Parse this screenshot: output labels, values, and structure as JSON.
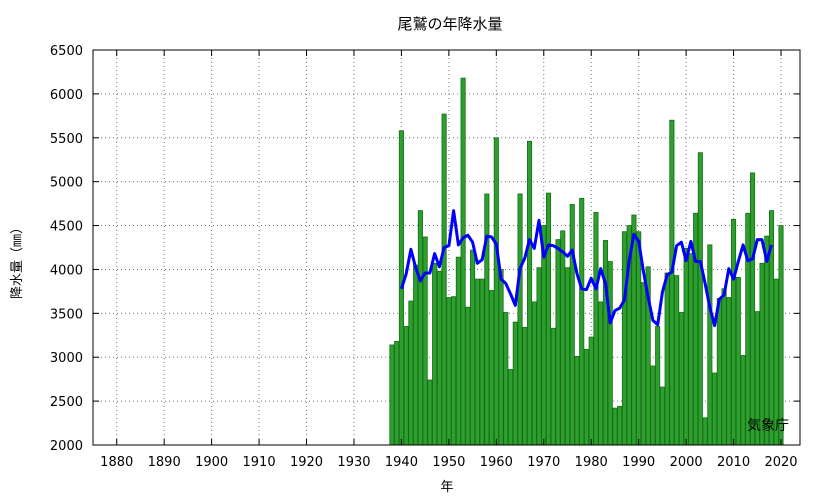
{
  "chart_data": {
    "type": "bar",
    "title": "尾鷲の年降水量",
    "xlabel": "年",
    "ylabel": "降水量（㎜）",
    "source": "気象庁",
    "xlim": [
      1875,
      2024
    ],
    "ylim": [
      2000,
      6500
    ],
    "xticks": [
      1880,
      1890,
      1900,
      1910,
      1920,
      1930,
      1940,
      1950,
      1960,
      1970,
      1980,
      1990,
      2000,
      2010,
      2020
    ],
    "yticks": [
      2000,
      2500,
      3000,
      3500,
      4000,
      4500,
      5000,
      5500,
      6000,
      6500
    ],
    "grid": true,
    "bar_color": "#2ca02c",
    "bar_edge_color": "#1a6b1a",
    "line_color": "#0000ff",
    "x": [
      1938,
      1939,
      1940,
      1941,
      1942,
      1943,
      1944,
      1945,
      1946,
      1947,
      1948,
      1949,
      1950,
      1951,
      1952,
      1953,
      1954,
      1955,
      1956,
      1957,
      1958,
      1959,
      1960,
      1961,
      1962,
      1963,
      1964,
      1965,
      1966,
      1967,
      1968,
      1969,
      1970,
      1971,
      1972,
      1973,
      1974,
      1975,
      1976,
      1977,
      1978,
      1979,
      1980,
      1981,
      1982,
      1983,
      1984,
      1985,
      1986,
      1987,
      1988,
      1989,
      1990,
      1991,
      1992,
      1993,
      1994,
      1995,
      1996,
      1997,
      1998,
      1999,
      2000,
      2001,
      2002,
      2003,
      2004,
      2005,
      2006,
      2007,
      2008,
      2009,
      2010,
      2011,
      2012,
      2013,
      2014,
      2015,
      2016,
      2017,
      2018,
      2019,
      2020
    ],
    "values": [
      3140,
      3180,
      5580,
      3350,
      3640,
      4050,
      4670,
      4370,
      2740,
      4070,
      3980,
      5770,
      3680,
      3690,
      4140,
      6180,
      3570,
      4220,
      3890,
      3890,
      4860,
      3760,
      5500,
      4000,
      3510,
      2860,
      3400,
      4860,
      3340,
      5460,
      3630,
      4020,
      4500,
      4870,
      3330,
      4340,
      4440,
      4020,
      4740,
      3010,
      4810,
      3090,
      3230,
      4650,
      3630,
      4330,
      4090,
      2420,
      2440,
      4430,
      4500,
      4620,
      4430,
      3850,
      4030,
      2900,
      3350,
      2660,
      3960,
      5700,
      3930,
      3510,
      4240,
      4180,
      4640,
      5330,
      2310,
      4280,
      2820,
      3670,
      3780,
      3680,
      4570,
      3910,
      3020,
      4640,
      5100,
      3520,
      4070,
      4380,
      4670,
      3890,
      4500
    ],
    "moving_average": {
      "x": [
        1940,
        1941,
        1942,
        1943,
        1944,
        1945,
        1946,
        1947,
        1948,
        1949,
        1950,
        1951,
        1952,
        1953,
        1954,
        1955,
        1956,
        1957,
        1958,
        1959,
        1960,
        1961,
        1962,
        1963,
        1964,
        1965,
        1966,
        1967,
        1968,
        1969,
        1970,
        1971,
        1972,
        1973,
        1974,
        1975,
        1976,
        1977,
        1978,
        1979,
        1980,
        1981,
        1982,
        1983,
        1984,
        1985,
        1986,
        1987,
        1988,
        1989,
        1990,
        1991,
        1992,
        1993,
        1994,
        1995,
        1996,
        1997,
        1998,
        1999,
        2000,
        2001,
        2002,
        2003,
        2004,
        2005,
        2006,
        2007,
        2008,
        2009,
        2010,
        2011,
        2012,
        2013,
        2014,
        2015,
        2016,
        2017,
        2018
      ],
      "values": [
        3780,
        3950,
        4230,
        4020,
        3870,
        3960,
        3960,
        4180,
        4030,
        4250,
        4270,
        4670,
        4280,
        4360,
        4390,
        4310,
        4070,
        4110,
        4380,
        4370,
        4290,
        3890,
        3840,
        3720,
        3590,
        4010,
        4130,
        4340,
        4240,
        4560,
        4140,
        4280,
        4270,
        4240,
        4200,
        4150,
        4220,
        3950,
        3780,
        3770,
        3900,
        3780,
        4010,
        3840,
        3390,
        3530,
        3560,
        3650,
        4100,
        4400,
        4320,
        3980,
        3680,
        3420,
        3370,
        3740,
        3940,
        3970,
        4270,
        4310,
        4100,
        4320,
        4090,
        4090,
        3840,
        3570,
        3360,
        3660,
        3710,
        4010,
        3890,
        4090,
        4280,
        4100,
        4120,
        4340,
        4340,
        4090,
        4280
      ]
    }
  }
}
